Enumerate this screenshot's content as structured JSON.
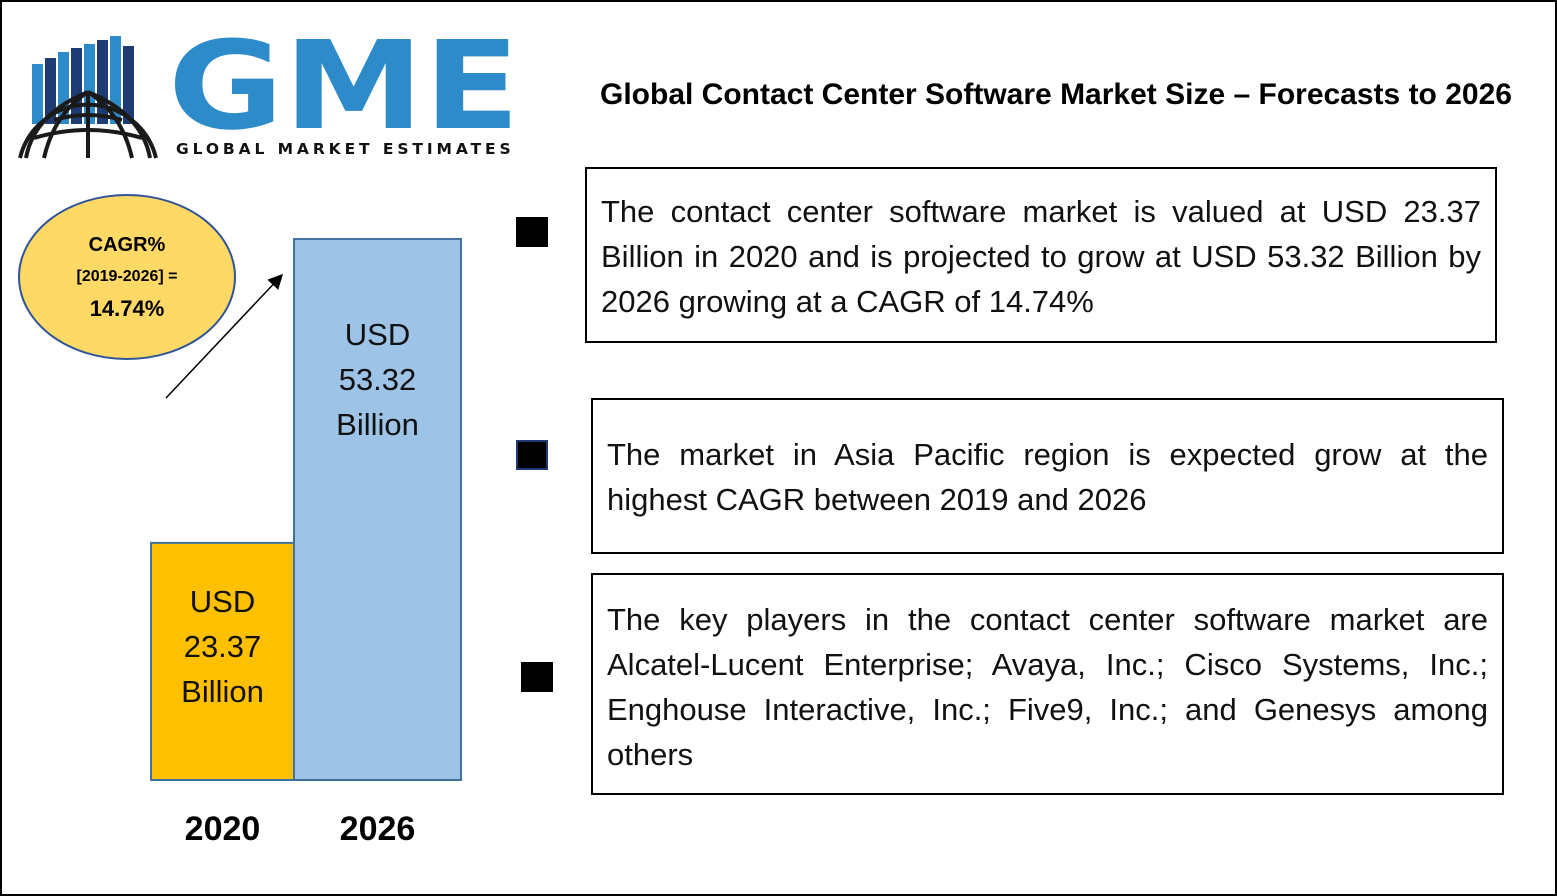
{
  "logo": {
    "letters": "GME",
    "tagline": "GLOBAL MARKET ESTIMATES",
    "colors": {
      "blue": "#2E8BC9",
      "navy": "#1F3B73",
      "dark": "#1a1a1a"
    }
  },
  "title": "Global Contact Center Software Market Size – Forecasts to 2026",
  "cagr": {
    "line1": "CAGR%",
    "line2": "[2019-2026] =",
    "line3": "14.74%",
    "fill": "#FFD966",
    "border": "#2F5597"
  },
  "chart_data": {
    "type": "bar",
    "categories": [
      "2020",
      "2026"
    ],
    "values": [
      23.37,
      53.32
    ],
    "unit": "USD Billion",
    "bar_labels": [
      [
        "USD",
        "23.37",
        "Billion"
      ],
      [
        "USD",
        "53.32",
        "Billion"
      ]
    ],
    "colors": [
      "#FFC000",
      "#9DC3E6"
    ],
    "bar_border": "#41719C",
    "ylim": [
      0,
      53.32
    ],
    "grid": false,
    "trend_arrow": true
  },
  "info_boxes": [
    {
      "text": "The contact center software market is valued at USD 23.37 Billion in 2020 and is projected to grow at USD 53.32 Billion by 2026 growing at a CAGR of 14.74%"
    },
    {
      "text": "The market in Asia Pacific region is expected grow at the highest CAGR between 2019 and 2026"
    },
    {
      "text": "The key players in the contact center software market are Alcatel-Lucent Enterprise; Avaya, Inc.; Cisco Systems, Inc.; Enghouse Interactive, Inc.; Five9, Inc.; and Genesys among others"
    }
  ]
}
